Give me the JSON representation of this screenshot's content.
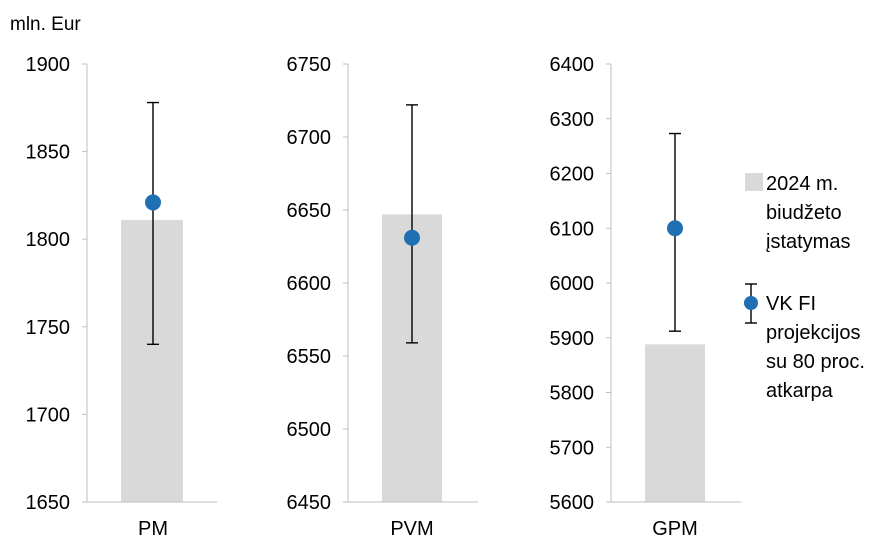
{
  "unit_label": "mln. Eur",
  "legend": {
    "bar_lines": [
      "2024 m.",
      "biudžeto",
      "įstatymas"
    ],
    "point_lines": [
      "VK FI",
      "projekcijos",
      "su 80 proc.",
      "atkarpa"
    ]
  },
  "colors": {
    "bar": "#d9d9d9",
    "point": "#1f6fb3",
    "error": "#000000",
    "axis": "#bfbfbf"
  },
  "chart_data": [
    {
      "type": "bar",
      "category": "PM",
      "ylim": [
        1650,
        1900
      ],
      "yticks": [
        "1900",
        "1850",
        "1800",
        "1750",
        "1700",
        "1650"
      ],
      "bar_value": 1811,
      "point_value": 1821,
      "error_low": 1740,
      "error_high": 1878
    },
    {
      "type": "bar",
      "category": "PVM",
      "ylim": [
        6450,
        6750
      ],
      "yticks": [
        "6750",
        "6700",
        "6650",
        "6600",
        "6550",
        "6500",
        "6450"
      ],
      "bar_value": 6647,
      "point_value": 6631,
      "error_low": 6559,
      "error_high": 6722
    },
    {
      "type": "bar",
      "category": "GPM",
      "ylim": [
        5600,
        6400
      ],
      "yticks": [
        "6400",
        "6300",
        "6200",
        "6100",
        "6000",
        "5900",
        "5800",
        "5700",
        "5600"
      ],
      "bar_value": 5888,
      "point_value": 6100,
      "error_low": 5912,
      "error_high": 6273
    }
  ]
}
